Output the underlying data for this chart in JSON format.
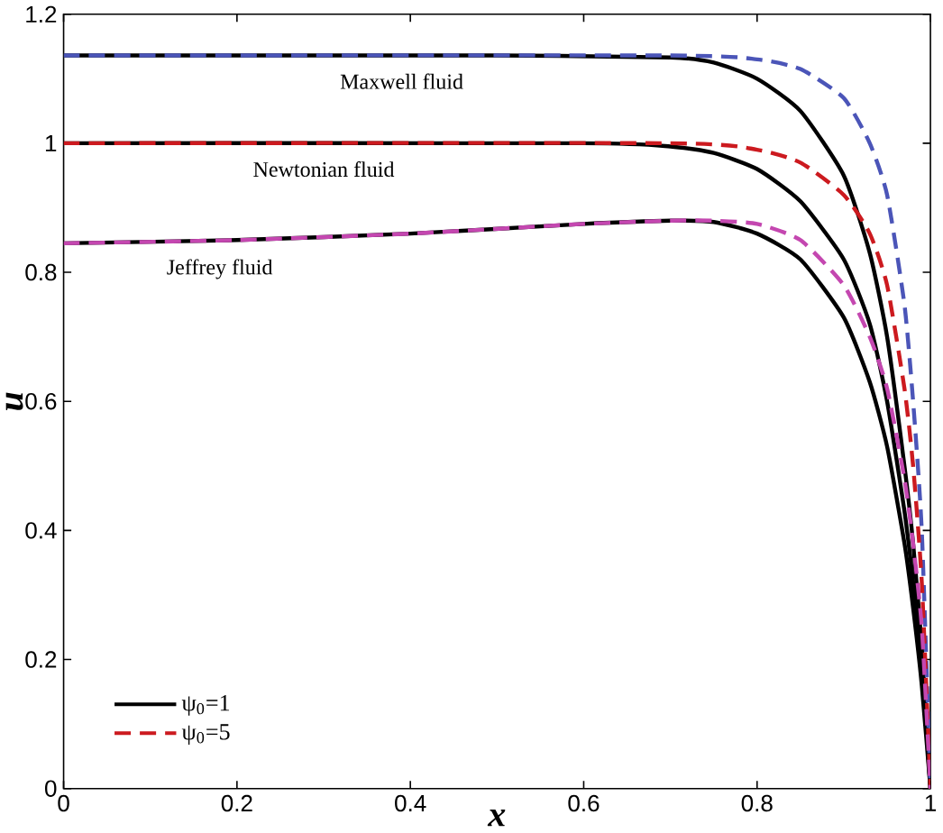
{
  "chart_data": {
    "type": "line",
    "xlabel": "x",
    "ylabel": "u",
    "xlim": [
      0,
      1
    ],
    "ylim": [
      0,
      1.2
    ],
    "xticks": [
      0,
      0.2,
      0.4,
      0.6,
      0.8,
      1
    ],
    "yticks": [
      0,
      0.2,
      0.4,
      0.6,
      0.8,
      1,
      1.2
    ],
    "grid": false,
    "legend": "bottom left",
    "marker": "none",
    "series": [
      {
        "name": "ψ$_{0}$=1",
        "color": "#000000",
        "line_style": "solid",
        "x": [
          0,
          0.5,
          0.7,
          0.75,
          0.8,
          0.85,
          0.9,
          0.93,
          0.95,
          0.97,
          0.98,
          0.99,
          1
        ],
        "values": [
          1.136,
          1.136,
          1.133,
          1.125,
          1.1,
          1.05,
          0.95,
          0.83,
          0.7,
          0.5,
          0.38,
          0.22,
          0
        ]
      },
      {
        "color": "#000000",
        "line_style": "solid",
        "x": [
          0,
          0.6,
          0.7,
          0.75,
          0.8,
          0.85,
          0.9,
          0.93,
          0.95,
          0.97,
          0.98,
          0.99,
          1
        ],
        "values": [
          1,
          1,
          0.995,
          0.985,
          0.96,
          0.91,
          0.82,
          0.72,
          0.6,
          0.43,
          0.32,
          0.19,
          0
        ]
      },
      {
        "color": "#000000",
        "line_style": "solid",
        "x": [
          0,
          0.2,
          0.4,
          0.6,
          0.7,
          0.75,
          0.8,
          0.85,
          0.9,
          0.93,
          0.95,
          0.97,
          0.98,
          0.99,
          1
        ],
        "values": [
          0.845,
          0.85,
          0.86,
          0.875,
          0.88,
          0.878,
          0.86,
          0.82,
          0.73,
          0.63,
          0.53,
          0.38,
          0.28,
          0.16,
          0
        ]
      },
      {
        "color": "#4b55b8",
        "line_style": "dashed",
        "x": [
          0,
          0.7,
          0.8,
          0.85,
          0.9,
          0.93,
          0.95,
          0.97,
          0.98,
          0.99,
          1
        ],
        "values": [
          1.136,
          1.136,
          1.13,
          1.115,
          1.07,
          1,
          0.92,
          0.75,
          0.6,
          0.4,
          0
        ]
      },
      {
        "name": "ψ$_{0}$=5",
        "color": "#cc1a1f",
        "line_style": "dashed",
        "x": [
          0,
          0.7,
          0.8,
          0.85,
          0.9,
          0.93,
          0.95,
          0.97,
          0.98,
          0.99,
          1
        ],
        "values": [
          1,
          1,
          0.99,
          0.97,
          0.92,
          0.86,
          0.78,
          0.62,
          0.5,
          0.32,
          0
        ]
      },
      {
        "color": "#c447b0",
        "line_style": "dashed",
        "x": [
          0,
          0.2,
          0.4,
          0.6,
          0.7,
          0.75,
          0.8,
          0.85,
          0.9,
          0.93,
          0.95,
          0.97,
          0.98,
          0.99,
          1
        ],
        "values": [
          0.845,
          0.85,
          0.86,
          0.875,
          0.88,
          0.88,
          0.875,
          0.85,
          0.78,
          0.7,
          0.62,
          0.48,
          0.38,
          0.25,
          0
        ]
      }
    ],
    "annotations": [
      "Maxwell fluid",
      "Newtonian fluid",
      "Jeffrey fluid"
    ]
  }
}
